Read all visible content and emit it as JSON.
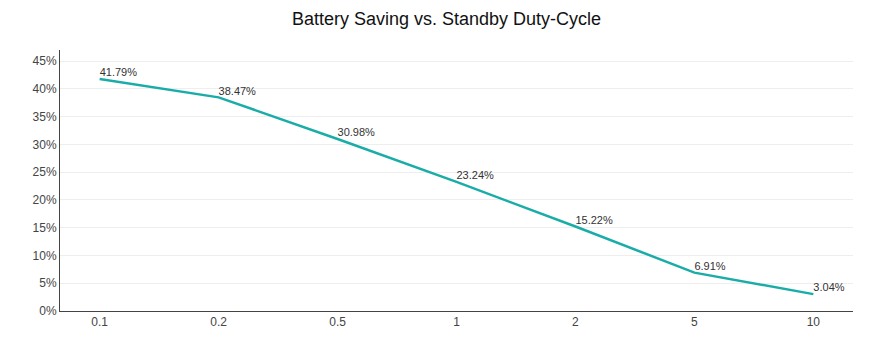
{
  "chart_data": {
    "type": "line",
    "title": "Battery Saving vs. Standby Duty-Cycle",
    "categories": [
      "0.1",
      "0.2",
      "0.5",
      "1",
      "2",
      "5",
      "10"
    ],
    "values": [
      41.79,
      38.47,
      30.98,
      23.24,
      15.22,
      6.91,
      3.04
    ],
    "value_labels": [
      "41.79%",
      "38.47%",
      "30.98%",
      "23.24%",
      "15.22%",
      "6.91%",
      "3.04%"
    ],
    "data_labels": true,
    "color": "#1aada8",
    "ylim": [
      0,
      47
    ],
    "yticks": [
      {
        "value": 0,
        "label": "0%"
      },
      {
        "value": 5,
        "label": "5%"
      },
      {
        "value": 10,
        "label": "10%"
      },
      {
        "value": 15,
        "label": "15%"
      },
      {
        "value": 20,
        "label": "20%"
      },
      {
        "value": 25,
        "label": "25%"
      },
      {
        "value": 30,
        "label": "30%"
      },
      {
        "value": 35,
        "label": "35%"
      },
      {
        "value": 40,
        "label": "40%"
      },
      {
        "value": 45,
        "label": "45%"
      }
    ],
    "grid": true
  }
}
